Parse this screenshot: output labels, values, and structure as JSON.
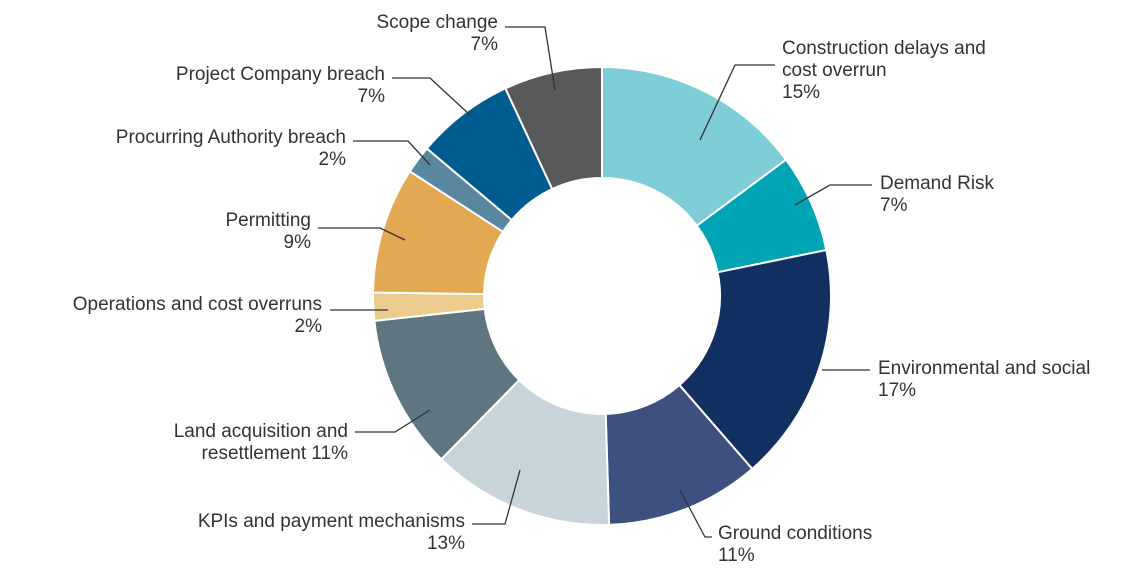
{
  "chart_data": {
    "type": "donut",
    "categories": [
      "Construction delays and cost overrun",
      "Demand Risk",
      "Environmental and social",
      "Ground conditions",
      "KPIs and payment mechanisms",
      "Land acquisition and resettlement",
      "Operations and cost overruns",
      "Permitting",
      "Procurring Authority breach",
      "Project Company breach",
      "Scope change"
    ],
    "values": [
      15,
      7,
      17,
      11,
      13,
      11,
      2,
      9,
      2,
      7,
      7
    ],
    "value_labels": [
      "15%",
      "7%",
      "17%",
      "11%",
      "13%",
      "11%",
      "2%",
      "9%",
      "2%",
      "7%",
      "7%"
    ],
    "colors": [
      "#7fcdd6",
      "#00a5b5",
      "#122f62",
      "#3e5080",
      "#c7d5da",
      "#5f7580",
      "#eccb8f",
      "#e3a852",
      "#5a87a0",
      "#005c8f",
      "#58595b"
    ]
  }
}
